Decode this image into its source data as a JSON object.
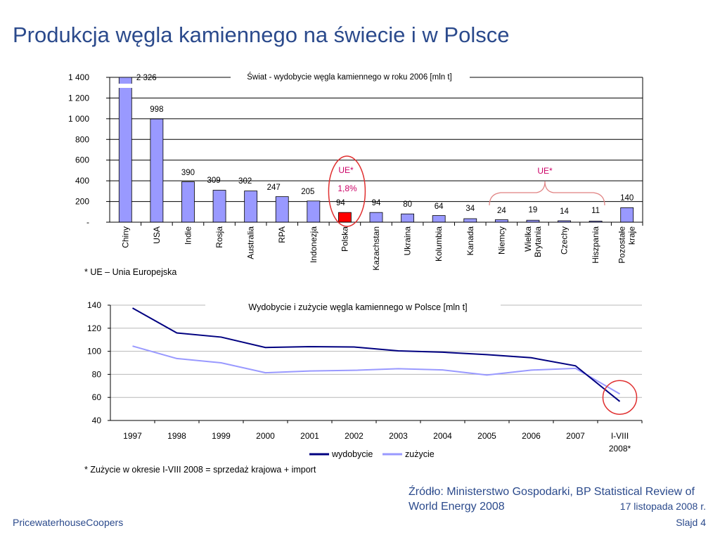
{
  "page": {
    "title": "Produkcja węgla kamiennego na świecie i w Polsce",
    "note_top": "* UE – Unia Europejska",
    "note_bottom": "* Zużycie w okresie I-VIII 2008 = sprzedaż krajowa + import",
    "source": "Źródło: Ministerstwo Gospodarki, BP Statistical Review of World Energy 2008",
    "date": "17 listopada 2008 r.",
    "company": "PricewaterhouseCoopers",
    "slide": "Slajd 4"
  },
  "chart_data": [
    {
      "type": "bar",
      "title": "Świat - wydobycie węgla kamiennego w roku 2006 [mln t]",
      "categories": [
        "Chiny",
        "USA",
        "Indie",
        "Rosja",
        "Australia",
        "RPA",
        "Indonezja",
        "Polska",
        "Kazachstan",
        "Ukraina",
        "Kolumbia",
        "Kanada",
        "Niemcy",
        "Wielka Brytania",
        "Czechy",
        "Hiszpania",
        "Pozostałe kraje"
      ],
      "values": [
        2326,
        998,
        390,
        309,
        302,
        247,
        205,
        94,
        94,
        80,
        64,
        34,
        24,
        19,
        14,
        11,
        140
      ],
      "value_labels": [
        "2 326",
        "998",
        "390",
        "309",
        "302",
        "247",
        "205",
        "94",
        "94",
        "80",
        "64",
        "34",
        "24",
        "19",
        "14",
        "11",
        "140"
      ],
      "ylim": [
        0,
        1400
      ],
      "yticks": [
        0,
        200,
        400,
        600,
        800,
        1000,
        1200,
        1400
      ],
      "ytick_labels": [
        "-",
        "200",
        "400",
        "600",
        "800",
        "1 000",
        "1 200",
        "1 400"
      ],
      "bar_color": "#9999ff",
      "highlight_category": "Polska",
      "highlight_color": "#ff0000",
      "annotations": [
        {
          "text": "UE*",
          "color": "#cc0066"
        },
        {
          "text": "1,8%",
          "color": "#cc0066"
        },
        {
          "text": "UE*",
          "color": "#cc0066"
        }
      ],
      "grid": true
    },
    {
      "type": "line",
      "title": "Wydobycie i zużycie węgla kamiennego w Polsce [mln t]",
      "x": [
        "1997",
        "1998",
        "1999",
        "2000",
        "2001",
        "2002",
        "2003",
        "2004",
        "2005",
        "2006",
        "2007",
        "I-VIII 2008*"
      ],
      "series": [
        {
          "name": "wydobycie",
          "color": "#000080",
          "values": [
            137.5,
            115.9,
            112.3,
            103.3,
            104.0,
            103.7,
            100.4,
            99.2,
            97.1,
            94.4,
            87.4,
            56.5
          ]
        },
        {
          "name": "zużycie",
          "color": "#9999ff",
          "values": [
            104.5,
            93.7,
            90.0,
            81.4,
            82.9,
            83.5,
            84.9,
            83.8,
            79.4,
            83.7,
            85.2,
            63.0
          ]
        }
      ],
      "ylim": [
        40,
        140
      ],
      "yticks": [
        40,
        60,
        80,
        100,
        120,
        140
      ],
      "legend": "bottom",
      "grid": true
    }
  ]
}
